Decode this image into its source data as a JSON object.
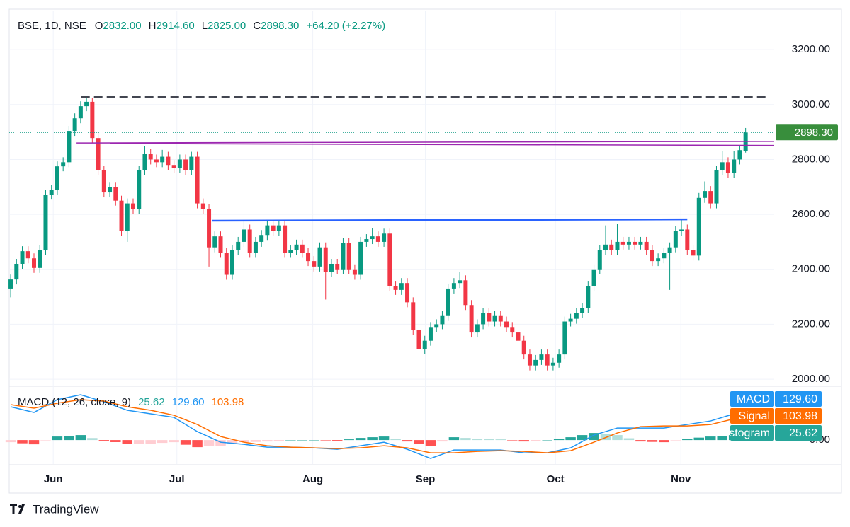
{
  "header": {
    "symbol": "BSE, 1D, NSE",
    "fields": [
      {
        "label": "O",
        "value": "2832.00"
      },
      {
        "label": "H",
        "value": "2914.60"
      },
      {
        "label": "L",
        "value": "2825.00"
      },
      {
        "label": "C",
        "value": "2898.30"
      }
    ],
    "change": "+64.20 (+2.27%)"
  },
  "brand": "TradingView",
  "chart_data": [
    {
      "type": "candlestick",
      "up_color": "#089981",
      "down_color": "#f23645",
      "open": [
        2330,
        2363,
        2420,
        2466,
        2440,
        2405,
        2470,
        2672,
        2690,
        2775,
        2790,
        2904,
        2950,
        2994,
        3010,
        2878,
        2760,
        2680,
        2700,
        2650,
        2540,
        2640,
        2620,
        2760,
        2820,
        2800,
        2790,
        2810,
        2780,
        2770,
        2800,
        2760,
        2810,
        2640,
        2620,
        2480,
        2520,
        2460,
        2380,
        2470,
        2500,
        2545,
        2460,
        2500,
        2525,
        2560,
        2540,
        2560,
        2460,
        2470,
        2490,
        2460,
        2430,
        2410,
        2480,
        2390,
        2420,
        2400,
        2495,
        2400,
        2380,
        2500,
        2510,
        2520,
        2500,
        2530,
        2340,
        2325,
        2350,
        2280,
        2180,
        2110,
        2140,
        2190,
        2200,
        2230,
        2330,
        2350,
        2360,
        2270,
        2170,
        2200,
        2240,
        2210,
        2230,
        2210,
        2190,
        2170,
        2140,
        2090,
        2050,
        2070,
        2090,
        2050,
        2060,
        2090,
        2210,
        2220,
        2240,
        2260,
        2340,
        2400,
        2470,
        2490,
        2470,
        2500,
        2490,
        2500,
        2490,
        2500,
        2470,
        2430,
        2440,
        2460,
        2480,
        2540,
        2545,
        2470,
        2450,
        2660,
        2685,
        2640,
        2760,
        2790,
        2750,
        2800,
        2832
      ],
      "high": [
        2381,
        2438,
        2484,
        2484,
        2458,
        2488,
        2690,
        2708,
        2793,
        2808,
        2922,
        2968,
        3012,
        3025,
        3025,
        2896,
        2778,
        2718,
        2718,
        2668,
        2658,
        2658,
        2778,
        2850,
        2838,
        2818,
        2835,
        2828,
        2798,
        2818,
        2818,
        2828,
        2828,
        2658,
        2638,
        2538,
        2538,
        2478,
        2488,
        2518,
        2580,
        2563,
        2518,
        2543,
        2578,
        2578,
        2578,
        2578,
        2488,
        2508,
        2508,
        2478,
        2448,
        2498,
        2498,
        2438,
        2438,
        2513,
        2513,
        2418,
        2518,
        2528,
        2550,
        2538,
        2548,
        2548,
        2358,
        2368,
        2368,
        2298,
        2198,
        2158,
        2208,
        2218,
        2248,
        2348,
        2368,
        2390,
        2378,
        2288,
        2218,
        2258,
        2258,
        2248,
        2248,
        2228,
        2208,
        2188,
        2158,
        2108,
        2088,
        2108,
        2108,
        2078,
        2108,
        2228,
        2238,
        2258,
        2278,
        2358,
        2418,
        2488,
        2560,
        2508,
        2565,
        2518,
        2518,
        2518,
        2518,
        2518,
        2488,
        2458,
        2478,
        2498,
        2558,
        2580,
        2563,
        2488,
        2678,
        2720,
        2703,
        2778,
        2830,
        2808,
        2830,
        2852,
        2914.6
      ],
      "low": [
        2298,
        2345,
        2402,
        2422,
        2387,
        2387,
        2452,
        2654,
        2672,
        2757,
        2772,
        2886,
        2932,
        2976,
        2860,
        2742,
        2662,
        2662,
        2632,
        2522,
        2500,
        2602,
        2602,
        2742,
        2782,
        2772,
        2772,
        2762,
        2752,
        2752,
        2742,
        2742,
        2622,
        2602,
        2410,
        2462,
        2442,
        2362,
        2362,
        2452,
        2482,
        2442,
        2442,
        2482,
        2507,
        2522,
        2522,
        2442,
        2442,
        2452,
        2442,
        2412,
        2392,
        2392,
        2290,
        2372,
        2382,
        2382,
        2382,
        2362,
        2362,
        2482,
        2492,
        2482,
        2482,
        2322,
        2307,
        2307,
        2262,
        2162,
        2092,
        2092,
        2122,
        2172,
        2182,
        2212,
        2312,
        2332,
        2252,
        2152,
        2152,
        2182,
        2192,
        2192,
        2192,
        2172,
        2152,
        2122,
        2072,
        2032,
        2032,
        2052,
        2032,
        2032,
        2042,
        2072,
        2192,
        2202,
        2222,
        2242,
        2322,
        2382,
        2452,
        2452,
        2452,
        2472,
        2472,
        2472,
        2472,
        2452,
        2412,
        2412,
        2422,
        2325,
        2462,
        2522,
        2452,
        2432,
        2432,
        2642,
        2622,
        2622,
        2742,
        2732,
        2732,
        2782,
        2825
      ],
      "close": [
        2363,
        2420,
        2466,
        2440,
        2405,
        2470,
        2672,
        2690,
        2775,
        2790,
        2904,
        2950,
        2994,
        3010,
        2878,
        2760,
        2680,
        2700,
        2650,
        2540,
        2640,
        2620,
        2760,
        2820,
        2800,
        2790,
        2810,
        2780,
        2770,
        2800,
        2760,
        2810,
        2640,
        2620,
        2480,
        2520,
        2460,
        2380,
        2470,
        2500,
        2545,
        2460,
        2500,
        2525,
        2560,
        2540,
        2560,
        2460,
        2470,
        2490,
        2460,
        2430,
        2410,
        2480,
        2390,
        2420,
        2400,
        2495,
        2400,
        2380,
        2500,
        2510,
        2520,
        2500,
        2530,
        2340,
        2325,
        2350,
        2280,
        2180,
        2110,
        2140,
        2190,
        2200,
        2230,
        2330,
        2350,
        2360,
        2270,
        2170,
        2200,
        2240,
        2210,
        2230,
        2210,
        2190,
        2170,
        2140,
        2090,
        2050,
        2070,
        2090,
        2050,
        2060,
        2090,
        2210,
        2220,
        2240,
        2260,
        2340,
        2400,
        2470,
        2490,
        2470,
        2500,
        2490,
        2500,
        2490,
        2500,
        2470,
        2430,
        2440,
        2460,
        2480,
        2540,
        2545,
        2470,
        2450,
        2660,
        2685,
        2640,
        2760,
        2790,
        2750,
        2800,
        2834.1,
        2898.3
      ],
      "last_price_label": "2898.30",
      "xlim": [
        -0.25,
        130.9
      ],
      "xticks": [
        {
          "value": 7.3,
          "label": "Jun"
        },
        {
          "value": 28.5,
          "label": "Jul"
        },
        {
          "value": 51.8,
          "label": "Aug"
        },
        {
          "value": 71.1,
          "label": "Sep"
        },
        {
          "value": 93.4,
          "label": "Oct"
        },
        {
          "value": 114.9,
          "label": "Nov"
        }
      ],
      "ylim": [
        1977,
        3342
      ],
      "yticks": [
        {
          "value": 2000,
          "label": "2000.00"
        },
        {
          "value": 2200,
          "label": "2200.00"
        },
        {
          "value": 2400,
          "label": "2400.00"
        },
        {
          "value": 2600,
          "label": "2600.00"
        },
        {
          "value": 2800,
          "label": "2800.00"
        },
        {
          "value": 3000,
          "label": "3000.00"
        },
        {
          "value": 3200,
          "label": "3200.00"
        }
      ],
      "grid": true,
      "lines": [
        {
          "x": [
            12.1,
            129.6
          ],
          "y": [
            3027,
            3027
          ],
          "color": "#434651",
          "style": "dashed",
          "width": 2.5
        },
        {
          "x": [
            11.3,
            130.9
          ],
          "y": [
            2860,
            2866
          ],
          "color": "#9c27b0",
          "style": "solid",
          "width": 1.5
        },
        {
          "x": [
            17,
            130.9
          ],
          "y": [
            2858,
            2851
          ],
          "color": "#9c27b0",
          "style": "solid",
          "width": 1.5
        },
        {
          "x": [
            34.6,
            116
          ],
          "y": [
            2577,
            2582
          ],
          "color": "#2962ff",
          "style": "solid",
          "width": 2.5
        }
      ]
    },
    {
      "type": "macd",
      "title": "MACD (12, 26, close, 9)",
      "xlim": [
        -0.25,
        130.9
      ],
      "ylim": [
        -115,
        259
      ],
      "yticks": [
        {
          "value": 0,
          "label": "0.00"
        }
      ],
      "series": [
        {
          "name": "MACD",
          "color": "#2196f3",
          "value_label": "129.60",
          "x": [
            0,
            4,
            8,
            12,
            16,
            20,
            24,
            28,
            32,
            36,
            40,
            44,
            48,
            52,
            56,
            60,
            64,
            68,
            72,
            76,
            80,
            84,
            88,
            92,
            96,
            100,
            104,
            108,
            112,
            116,
            120,
            124,
            126
          ],
          "values": [
            164.5,
            136.5,
            199.5,
            224,
            189,
            147,
            129.5,
            112,
            42,
            -10.5,
            -21,
            -35,
            -35,
            -38.5,
            -45.5,
            -28,
            -10.5,
            -45.5,
            -91,
            -49,
            -49,
            -49,
            -63,
            -63,
            -38.5,
            24.5,
            59.5,
            59.5,
            59.5,
            77,
            94.5,
            129.5,
            129.6
          ]
        },
        {
          "name": "Signal",
          "color": "#ff6d00",
          "value_label": "103.98",
          "x": [
            0,
            4,
            8,
            12,
            16,
            20,
            24,
            28,
            32,
            36,
            40,
            44,
            48,
            52,
            56,
            60,
            64,
            68,
            72,
            76,
            80,
            84,
            88,
            92,
            96,
            100,
            104,
            108,
            112,
            116,
            120,
            124,
            126
          ],
          "values": [
            175,
            157.5,
            182,
            199.5,
            192.5,
            164.5,
            147,
            122.5,
            77,
            17.5,
            -10.5,
            -28,
            -35,
            -38.5,
            -42,
            -38.5,
            -28,
            -38.5,
            -63,
            -63,
            -56,
            -52.5,
            -56,
            -63,
            -52.5,
            -10.5,
            35,
            66.5,
            70,
            70,
            77,
            105,
            103.98
          ]
        },
        {
          "name": "Histogram",
          "color": "#26a69a",
          "value_label": "25.62",
          "up_colors": [
            "#26a69a",
            "#b2dfdb"
          ],
          "down_colors": [
            "#ff5252",
            "#ffcdd2"
          ],
          "x": [
            0,
            2,
            4,
            6,
            8,
            10,
            12,
            14,
            16,
            18,
            20,
            22,
            24,
            26,
            28,
            30,
            32,
            34,
            36,
            38,
            40,
            42,
            44,
            46,
            48,
            50,
            52,
            54,
            56,
            58,
            60,
            62,
            64,
            66,
            68,
            70,
            72,
            74,
            76,
            78,
            80,
            82,
            84,
            86,
            88,
            90,
            92,
            94,
            96,
            98,
            100,
            102,
            104,
            106,
            108,
            110,
            112,
            114,
            116,
            118,
            120,
            122,
            124,
            126
          ],
          "values": [
            -10.5,
            -16,
            -21,
            -2,
            17.5,
            21,
            24.5,
            10,
            -3.5,
            -10,
            -17.5,
            -17.5,
            -17.5,
            -14,
            -10.5,
            -23,
            -35,
            -31,
            -28,
            -19,
            -10.5,
            -9,
            -7,
            -3.5,
            0,
            0,
            0,
            -2,
            -3.5,
            3.5,
            10.5,
            14,
            17.5,
            5,
            -7,
            -17.5,
            -28,
            -7,
            14,
            10.5,
            7,
            5,
            3.5,
            -2,
            -7,
            -3.5,
            0,
            7,
            14,
            24.5,
            35,
            30,
            24.5,
            9,
            -7,
            -9,
            -10.5,
            -2,
            7,
            12,
            17.5,
            21,
            24.5,
            25.62
          ]
        }
      ]
    }
  ]
}
